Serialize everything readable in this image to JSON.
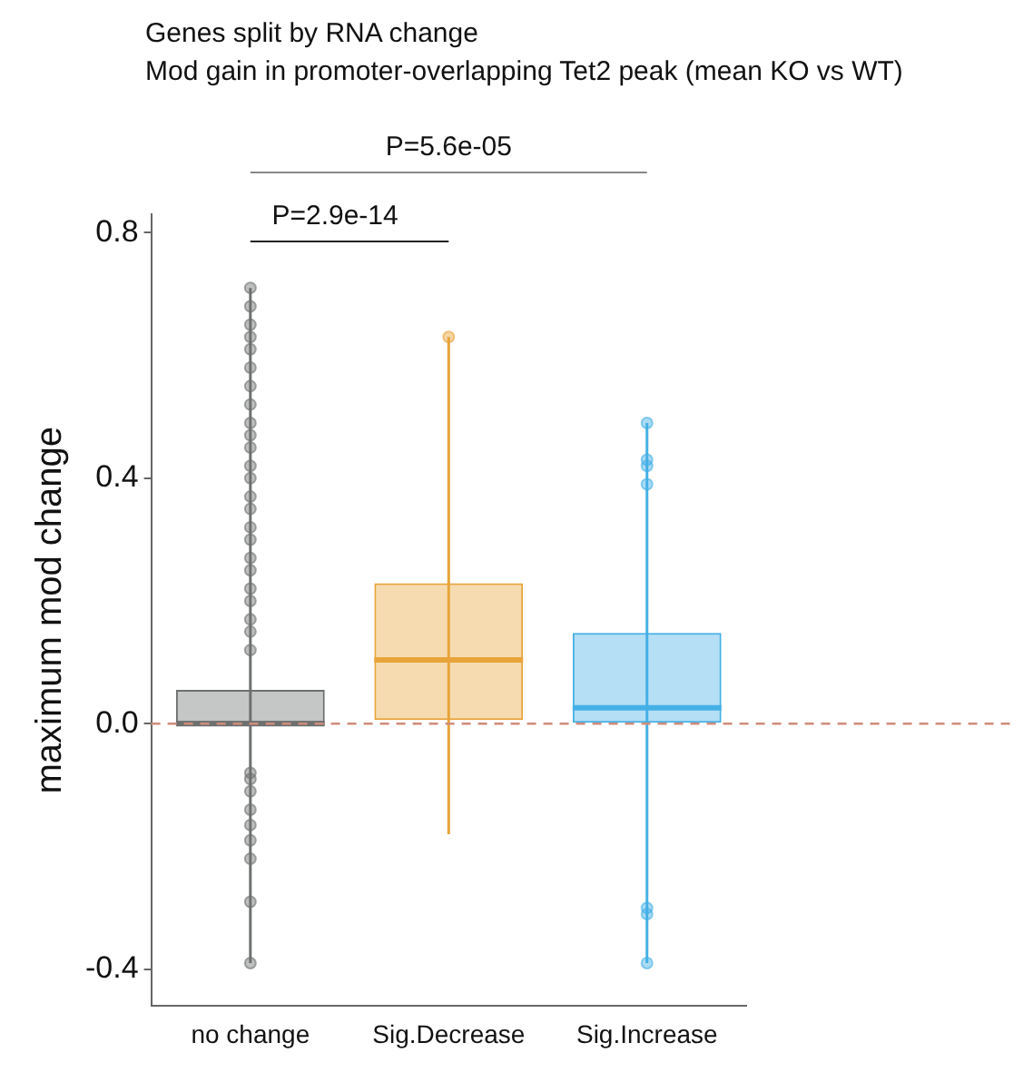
{
  "chart_data": {
    "type": "box",
    "title": "Genes split by RNA change",
    "subtitle": "Mod gain in promoter-overlapping Tet2 peak (mean KO vs WT)",
    "ylabel": "maximum mod change",
    "categories": [
      "no change",
      "Sig.Decrease",
      "Sig.Increase"
    ],
    "colors": [
      "#6e7070",
      "#e8a43a",
      "#45b0e6"
    ],
    "boxes": [
      {
        "low": -0.39,
        "q1": 0.0,
        "median": 0.0,
        "q3": 0.055,
        "high": 0.71,
        "outliers": [
          0.71,
          0.68,
          0.65,
          0.63,
          0.61,
          0.58,
          0.55,
          0.52,
          0.49,
          0.47,
          0.45,
          0.42,
          0.4,
          0.37,
          0.35,
          0.32,
          0.3,
          0.27,
          0.25,
          0.22,
          0.2,
          0.17,
          0.15,
          0.12,
          -0.08,
          -0.09,
          -0.11,
          -0.14,
          -0.165,
          -0.19,
          -0.22,
          -0.29,
          -0.39
        ]
      },
      {
        "low": -0.18,
        "q1": 0.006,
        "median": 0.104,
        "q3": 0.229,
        "high": 0.63,
        "outliers": [
          0.63
        ]
      },
      {
        "low": -0.39,
        "q1": 0.0,
        "median": 0.026,
        "q3": 0.148,
        "high": 0.49,
        "outliers": [
          0.49,
          0.43,
          0.42,
          0.39,
          -0.3,
          -0.31,
          -0.39
        ]
      }
    ],
    "ylim": [
      -0.46,
      0.83
    ],
    "yticks": [
      {
        "value": -0.4,
        "label": "-0.4"
      },
      {
        "value": 0,
        "label": "0.0"
      },
      {
        "value": 0.4,
        "label": "0.4"
      },
      {
        "value": 0.8,
        "label": "0.8"
      }
    ],
    "ref_lines": [
      {
        "axis": "y",
        "value": 0,
        "color": "#d08c7a",
        "line_style": "dashed"
      }
    ],
    "annotations": [
      "P=2.9e-14",
      "P=5.6e-05"
    ],
    "grid": false,
    "legend": false
  }
}
